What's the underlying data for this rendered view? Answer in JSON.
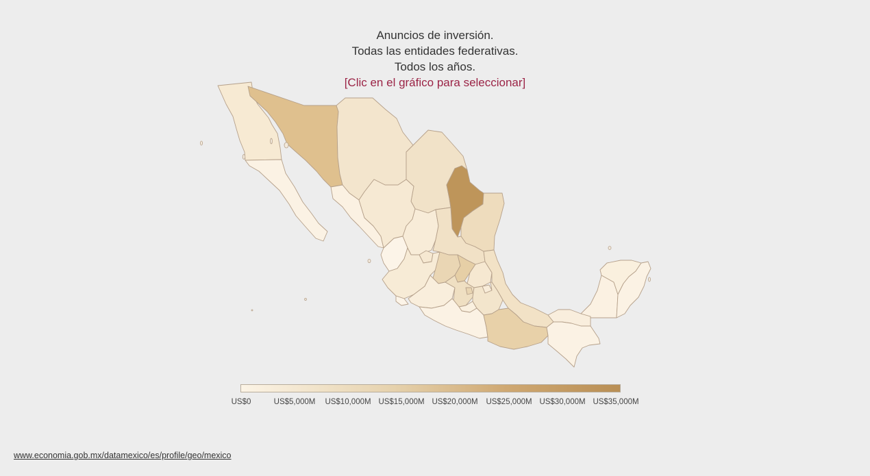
{
  "title": {
    "line1": "Anuncios de inversión.",
    "line2": "Todas las entidades federativas.",
    "line3": "Todos los años.",
    "hint": "[Clic en el gráfico para seleccionar]"
  },
  "legend": {
    "ticks": [
      "US$0",
      "US$5,000M",
      "US$10,000M",
      "US$15,000M",
      "US$20,000M",
      "US$25,000M",
      "US$30,000M",
      "US$35,000M"
    ],
    "colors": {
      "min": "#fcf4e6",
      "max": "#b98f55"
    }
  },
  "map_fills": {
    "baja-california": "#f7ead3",
    "baja-california-sur": "#fbf2e4",
    "sonora": "#dfc08e",
    "chihuahua": "#f3e5cd",
    "coahuila": "#f1e2c8",
    "nuevo-leon": "#be955a",
    "tamaulipas": "#eedcbd",
    "sinaloa": "#fbf1e2",
    "durango": "#f6e9d3",
    "zacatecas": "#f8ecd8",
    "san-luis-potosi": "#f1e1c6",
    "nayarit": "#fcf4e8",
    "aguascalientes": "#f6e8d1",
    "jalisco": "#f7ebd6",
    "guanajuato": "#ead6b4",
    "queretaro": "#e6cfa6",
    "hidalgo": "#f6e8d1",
    "veracruz": "#f2e2c6",
    "colima": "#fcf4e8",
    "michoacan": "#f9eedc",
    "estado-de-mexico": "#efdfc2",
    "cdmx": "#e9d5b2",
    "morelos": "#faf0df",
    "tlaxcala": "#f8ecd9",
    "puebla": "#f3e5cc",
    "guerrero": "#fbf2e4",
    "oaxaca": "#e8d1a9",
    "tabasco": "#f9eedd",
    "chiapas": "#fbf2e4",
    "campeche": "#fbf1e2",
    "yucatan": "#faf0de",
    "quintana-roo": "#fbf2e4"
  },
  "source": {
    "url": "www.economia.gob.mx/datamexico/es/profile/geo/mexico"
  }
}
